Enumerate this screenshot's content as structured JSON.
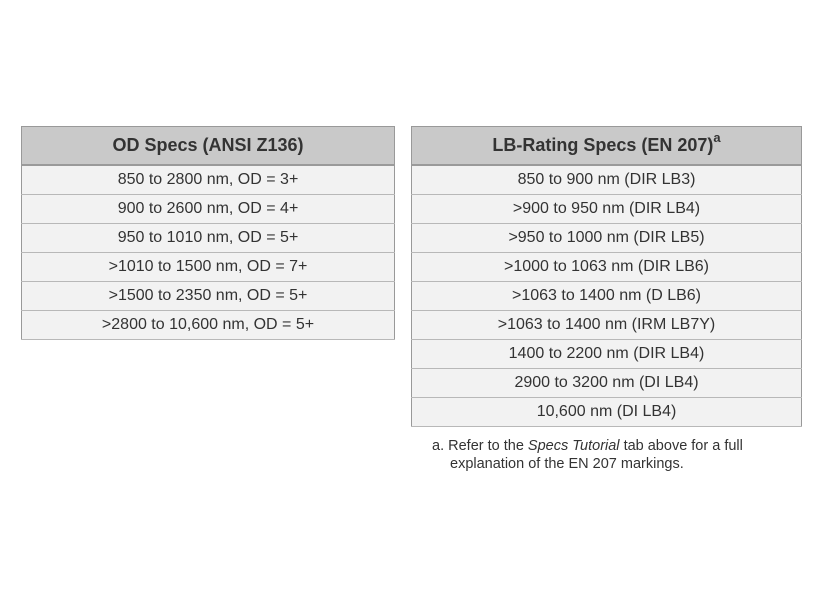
{
  "od_table": {
    "header": "OD Specs (ANSI Z136)",
    "rows": [
      "850 to 2800 nm, OD = 3+",
      "900 to 2600 nm, OD = 4+",
      "950 to 1010 nm, OD = 5+",
      ">1010 to 1500 nm, OD = 7+",
      ">1500 to 2350 nm, OD = 5+",
      ">2800 to 10,600 nm, OD = 5+"
    ]
  },
  "lb_table": {
    "header": "LB-Rating Specs (EN 207)",
    "header_footnote_marker": "a",
    "rows": [
      "850 to 900 nm (DIR LB3)",
      ">900 to 950 nm (DIR LB4)",
      ">950 to 1000 nm (DIR LB5)",
      ">1000 to 1063 nm (DIR LB6)",
      ">1063 to 1400 nm (D LB6)",
      ">1063 to 1400 nm (IRM LB7Y)",
      "1400 to 2200 nm (DIR LB4)",
      "2900 to 3200 nm (DI LB4)",
      "10,600 nm (DI LB4)"
    ]
  },
  "footnote": {
    "marker": "a.",
    "text_before": "Refer to the",
    "emphasis": "Specs Tutorial",
    "text_after": "tab above for a full",
    "line2": "explanation of the EN 207 markings."
  },
  "colors": {
    "header_bg": "#c9c9c9",
    "cell_bg": "#f2f2f2",
    "border": "#999999",
    "text": "#333333"
  }
}
